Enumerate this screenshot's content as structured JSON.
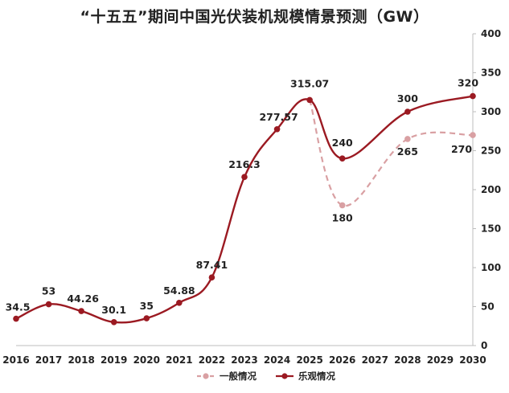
{
  "chart_data": {
    "type": "line",
    "title": "“十五五”期间中国光伏装机规模情景预测（GW）",
    "categories": [
      "2016",
      "2017",
      "2018",
      "2019",
      "2020",
      "2021",
      "2022",
      "2023",
      "2024",
      "2025",
      "2026",
      "2027",
      "2028",
      "2029",
      "2030"
    ],
    "ylim": [
      0,
      400
    ],
    "yticks": [
      0,
      50,
      100,
      150,
      200,
      250,
      300,
      350,
      400
    ],
    "legend_position": "bottom-right",
    "grid": false,
    "series": [
      {
        "name": "一般情况",
        "color": "#d9a0a3",
        "style": "dashed",
        "values": [
          null,
          null,
          null,
          null,
          null,
          null,
          null,
          null,
          null,
          315.07,
          180,
          null,
          265,
          null,
          270
        ],
        "labels": [
          null,
          null,
          null,
          null,
          null,
          null,
          null,
          null,
          null,
          null,
          "180",
          null,
          "265",
          null,
          "270"
        ]
      },
      {
        "name": "乐观情况",
        "color": "#9b1a22",
        "style": "solid",
        "values": [
          34.5,
          53,
          44.26,
          30.1,
          35,
          54.88,
          87.41,
          216.3,
          277.57,
          315.07,
          240,
          null,
          300,
          null,
          320
        ],
        "labels": [
          "34.5",
          "53",
          "44.26",
          "30.1",
          "35",
          "54.88",
          "87.41",
          "216.3",
          "277.57",
          "315.07",
          "240",
          null,
          "300",
          null,
          "320"
        ]
      }
    ]
  }
}
